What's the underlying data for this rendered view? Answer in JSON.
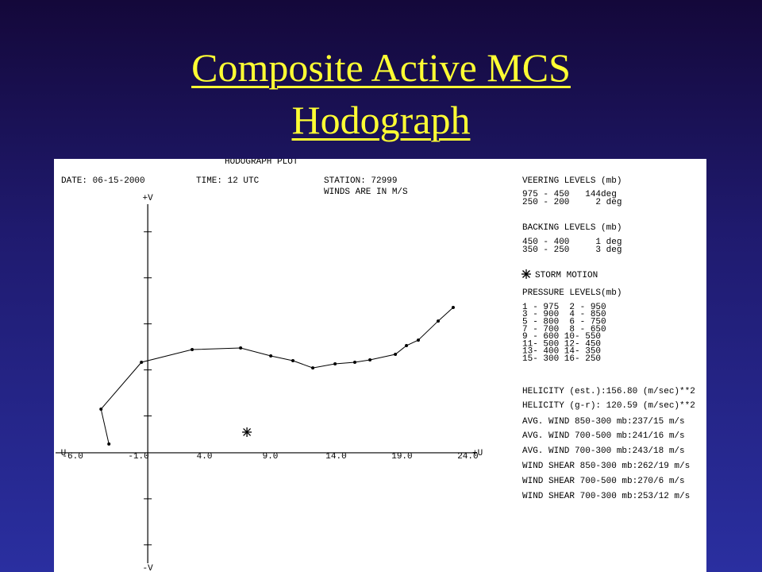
{
  "slide_title": "Composite Active MCS Hodograph",
  "chart_data": {
    "type": "line",
    "title": "HODOGRAPH PLOT",
    "date": "DATE: 06-15-2000",
    "time": "TIME: 12 UTC",
    "station": "STATION: 72999",
    "units_note": "WINDS ARE IN M/S",
    "x_axis_labels": [
      "-U",
      "+U"
    ],
    "y_axis_labels": [
      "+V",
      "-V"
    ],
    "x": [
      -2.95,
      -3.55,
      -0.48,
      3.37,
      7.05,
      9.34,
      11.02,
      12.53,
      14.22,
      15.72,
      16.87,
      18.8,
      19.64,
      20.54,
      22.05,
      23.19
    ],
    "values": [
      0.95,
      4.74,
      9.83,
      11.21,
      11.38,
      10.52,
      10.0,
      9.22,
      9.66,
      9.83,
      10.09,
      10.69,
      11.64,
      12.24,
      14.31,
      15.78
    ],
    "color": "#000000",
    "storm_motion": {
      "x": 7.53,
      "y": 2.24,
      "label": "STORM MOTION"
    },
    "xlim": [
      -7,
      25
    ],
    "ylim": [
      -12,
      27
    ],
    "xticks": [
      {
        "value": -6,
        "label": "-6.0"
      },
      {
        "value": -1,
        "label": "-1.0"
      },
      {
        "value": 4,
        "label": "4.0"
      },
      {
        "value": 9,
        "label": "9.0"
      },
      {
        "value": 14,
        "label": "14.0"
      },
      {
        "value": 19,
        "label": "19.0"
      },
      {
        "value": 24,
        "label": "24.0"
      }
    ],
    "yticks": [
      -10,
      -5,
      4,
      9,
      14,
      19,
      24
    ],
    "info_panel": [
      "VEERING LEVELS (mb)",
      "975 - 450   144deg",
      "250 - 200     2 deg",
      "BACKING LEVELS (mb)",
      "450 - 400     1 deg",
      "350 - 250     3 deg",
      "PRESSURE LEVELS(mb)",
      "1 - 975  2 - 950",
      "3 - 900  4 - 850",
      "5 - 800  6 - 750",
      "7 - 700  8 - 650",
      "9 - 600 10- 550",
      "11- 500 12- 450",
      "13- 400 14- 350",
      "15- 300 16- 250",
      "HELICITY (est.):156.80 (m/sec)**2",
      "HELICITY (g-r): 120.59 (m/sec)**2",
      "AVG. WIND 850-300 mb:237/15 m/s",
      "AVG. WIND 700-500 mb:241/16 m/s",
      "AVG. WIND 700-300 mb:243/18 m/s",
      "WIND SHEAR 850-300 mb:262/19 m/s",
      "WIND SHEAR 700-500 mb:270/6 m/s",
      "WIND SHEAR 700-300 mb:253/12 m/s"
    ]
  }
}
